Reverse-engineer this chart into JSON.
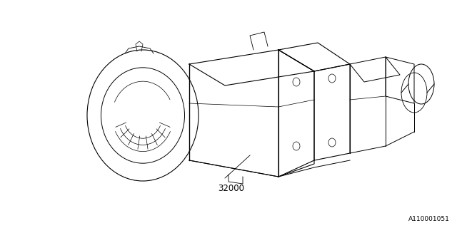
{
  "bg_color": "#ffffff",
  "line_color": "#000000",
  "part_number": "32000",
  "ref_number": "A110001051",
  "ref_font_size": 6.5,
  "part_font_size": 8.5
}
